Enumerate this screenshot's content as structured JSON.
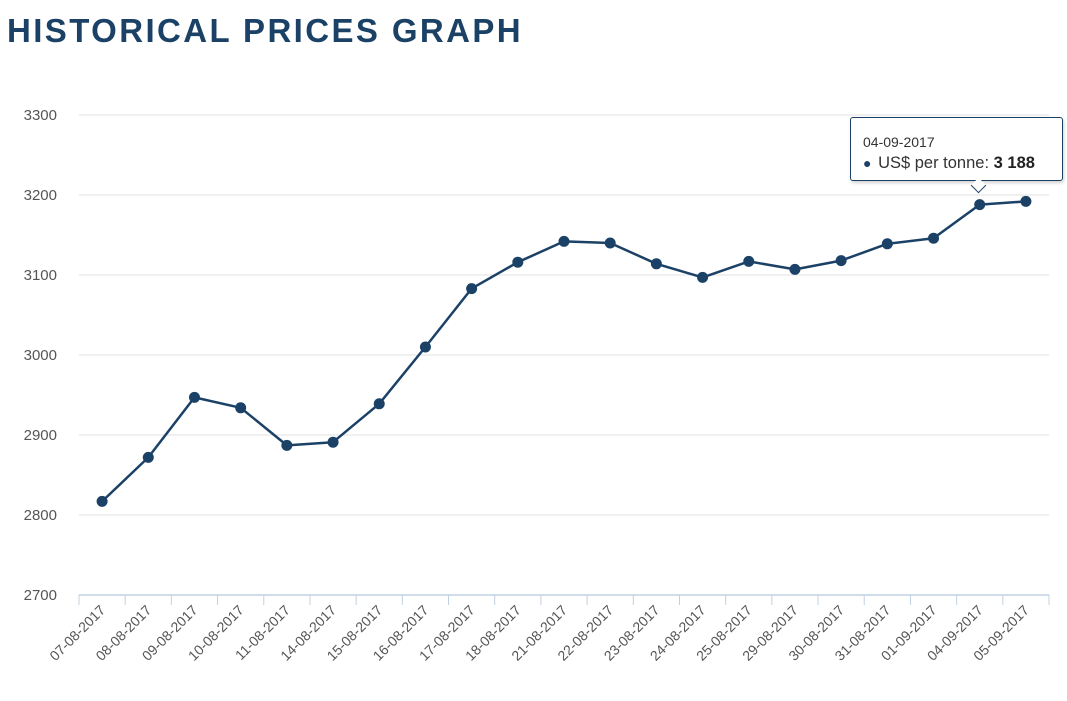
{
  "page": {
    "title": "HISTORICAL PRICES GRAPH"
  },
  "colors": {
    "series": "#1b4266",
    "grid": "#e0e0e0",
    "axis": "#c0d0e0",
    "title": "#1b4266"
  },
  "tooltip": {
    "date": "04-09-2017",
    "series_label": "US$ per tonne:",
    "value": "3 188"
  },
  "chart_data": {
    "type": "line",
    "title": "HISTORICAL PRICES GRAPH",
    "categories": [
      "07-08-2017",
      "08-08-2017",
      "09-08-2017",
      "10-08-2017",
      "11-08-2017",
      "14-08-2017",
      "15-08-2017",
      "16-08-2017",
      "17-08-2017",
      "18-08-2017",
      "21-08-2017",
      "22-08-2017",
      "23-08-2017",
      "24-08-2017",
      "25-08-2017",
      "29-08-2017",
      "30-08-2017",
      "31-08-2017",
      "01-09-2017",
      "04-09-2017",
      "05-09-2017"
    ],
    "series": [
      {
        "name": "US$ per tonne",
        "values": [
          2817,
          2872,
          2947,
          2934,
          2887,
          2891,
          2939,
          3010,
          3083,
          3116,
          3142,
          3140,
          3114,
          3097,
          3117,
          3107,
          3118,
          3139,
          3146,
          3188,
          3192
        ]
      }
    ],
    "ylim": [
      2700,
      3300
    ],
    "yticks": [
      2700,
      2800,
      2900,
      3000,
      3100,
      3200,
      3300
    ],
    "grid": true,
    "legend": "none"
  }
}
